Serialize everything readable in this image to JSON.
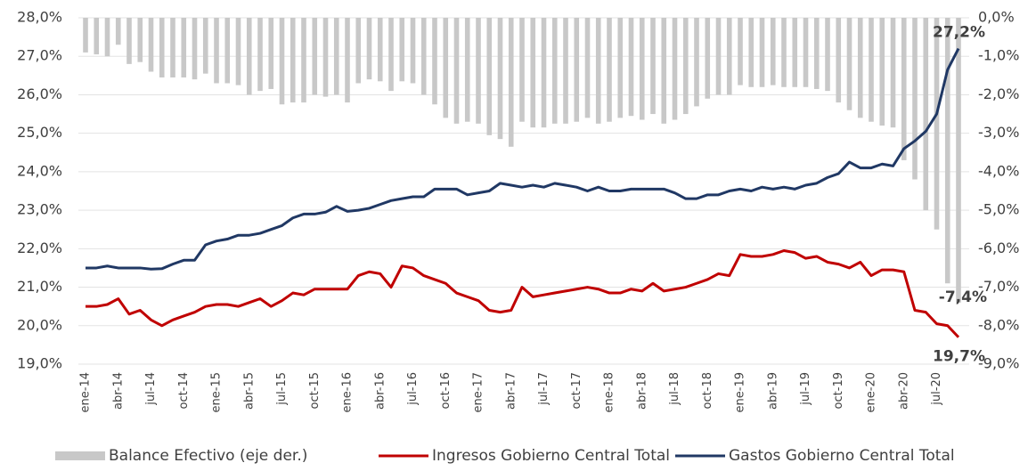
{
  "chart_data": {
    "type": "bar-line",
    "categories": [
      "ene-14",
      null,
      null,
      "abr-14",
      null,
      null,
      "jul-14",
      null,
      null,
      "oct-14",
      null,
      null,
      "ene-15",
      null,
      null,
      "abr-15",
      null,
      null,
      "jul-15",
      null,
      null,
      "oct-15",
      null,
      null,
      "ene-16",
      null,
      null,
      "abr-16",
      null,
      null,
      "jul-16",
      null,
      null,
      "oct-16",
      null,
      null,
      "ene-17",
      null,
      null,
      "abr-17",
      null,
      null,
      "jul-17",
      null,
      null,
      "oct-17",
      null,
      null,
      "ene-18",
      null,
      null,
      "abr-18",
      null,
      null,
      "jul-18",
      null,
      null,
      "oct-18",
      null,
      null,
      "ene-19",
      null,
      null,
      "abr-19",
      null,
      null,
      "jul-19",
      null,
      null,
      "oct-19",
      null,
      null,
      "ene-20",
      null,
      null,
      "abr-20",
      null,
      null,
      "jul-20",
      null,
      null
    ],
    "series": [
      {
        "name": "Balance Efectivo (eje der.)",
        "kind": "bar",
        "axis": "y2",
        "color": "#c8c8c8",
        "values": [
          -0.9,
          -0.95,
          -1.0,
          -0.7,
          -1.2,
          -1.15,
          -1.4,
          -1.55,
          -1.55,
          -1.55,
          -1.6,
          -1.45,
          -1.7,
          -1.7,
          -1.75,
          -2.0,
          -1.9,
          -1.85,
          -2.25,
          -2.2,
          -2.2,
          -2.0,
          -2.05,
          -2.0,
          -2.2,
          -1.7,
          -1.6,
          -1.65,
          -1.9,
          -1.65,
          -1.7,
          -2.0,
          -2.25,
          -2.6,
          -2.75,
          -2.7,
          -2.75,
          -3.05,
          -3.15,
          -3.35,
          -2.7,
          -2.85,
          -2.85,
          -2.75,
          -2.75,
          -2.7,
          -2.6,
          -2.75,
          -2.7,
          -2.6,
          -2.55,
          -2.65,
          -2.5,
          -2.75,
          -2.65,
          -2.5,
          -2.3,
          -2.1,
          -2.0,
          -2.0,
          -1.75,
          -1.8,
          -1.8,
          -1.75,
          -1.8,
          -1.8,
          -1.8,
          -1.85,
          -1.9,
          -2.2,
          -2.4,
          -2.6,
          -2.7,
          -2.8,
          -2.85,
          -3.7,
          -4.2,
          -5.0,
          -5.5,
          -6.9,
          -7.4
        ],
        "value_labels": [
          null,
          null,
          null,
          null,
          null,
          null,
          null,
          null,
          null,
          null,
          null,
          null,
          null,
          null,
          null,
          null,
          null,
          null,
          null,
          null,
          null,
          null,
          null,
          null,
          null,
          null,
          null,
          null,
          null,
          null,
          null,
          null,
          null,
          null,
          null,
          null,
          null,
          null,
          null,
          null,
          null,
          null,
          null,
          null,
          null,
          null,
          null,
          null,
          null,
          null,
          null,
          null,
          null,
          null,
          null,
          null,
          null,
          null,
          null,
          null,
          null,
          null,
          null,
          null,
          null,
          null,
          null,
          null,
          null,
          null,
          null,
          null,
          null,
          null,
          null,
          null,
          null,
          null,
          null,
          null,
          "-7,4%"
        ]
      },
      {
        "name": "Ingresos Gobierno Central Total",
        "kind": "line",
        "color": "#c00000",
        "values": [
          20.5,
          20.5,
          20.55,
          20.7,
          20.3,
          20.4,
          20.15,
          20.0,
          20.15,
          20.25,
          20.35,
          20.5,
          20.55,
          20.55,
          20.5,
          20.6,
          20.7,
          20.5,
          20.65,
          20.85,
          20.8,
          20.95,
          20.95,
          20.95,
          20.95,
          21.3,
          21.4,
          21.35,
          21.0,
          21.55,
          21.5,
          21.3,
          21.2,
          21.1,
          20.85,
          20.75,
          20.65,
          20.4,
          20.35,
          20.4,
          21.0,
          20.75,
          20.8,
          20.85,
          20.9,
          20.95,
          21.0,
          20.95,
          20.85,
          20.85,
          20.95,
          20.9,
          21.1,
          20.9,
          20.95,
          21.0,
          21.1,
          21.2,
          21.35,
          21.3,
          21.85,
          21.8,
          21.8,
          21.85,
          21.95,
          21.9,
          21.75,
          21.8,
          21.65,
          21.6,
          21.5,
          21.65,
          21.3,
          21.45,
          21.45,
          21.4,
          20.4,
          20.35,
          20.05,
          20.0,
          19.7
        ],
        "value_labels": [
          null,
          null,
          null,
          null,
          null,
          null,
          null,
          null,
          null,
          null,
          null,
          null,
          null,
          null,
          null,
          null,
          null,
          null,
          null,
          null,
          null,
          null,
          null,
          null,
          null,
          null,
          null,
          null,
          null,
          null,
          null,
          null,
          null,
          null,
          null,
          null,
          null,
          null,
          null,
          null,
          null,
          null,
          null,
          null,
          null,
          null,
          null,
          null,
          null,
          null,
          null,
          null,
          null,
          null,
          null,
          null,
          null,
          null,
          null,
          null,
          null,
          null,
          null,
          null,
          null,
          null,
          null,
          null,
          null,
          null,
          null,
          null,
          null,
          null,
          null,
          null,
          null,
          null,
          null,
          null,
          "19,7%"
        ]
      },
      {
        "name": "Gastos Gobierno Central Total",
        "kind": "line",
        "color": "#203864",
        "values": [
          21.5,
          21.5,
          21.55,
          21.5,
          21.5,
          21.5,
          21.47,
          21.48,
          21.6,
          21.7,
          21.7,
          22.1,
          22.2,
          22.25,
          22.35,
          22.35,
          22.4,
          22.5,
          22.6,
          22.8,
          22.9,
          22.9,
          22.95,
          23.1,
          22.97,
          23.0,
          23.05,
          23.15,
          23.25,
          23.3,
          23.35,
          23.35,
          23.55,
          23.55,
          23.55,
          23.4,
          23.45,
          23.5,
          23.7,
          23.65,
          23.6,
          23.65,
          23.6,
          23.7,
          23.65,
          23.6,
          23.5,
          23.6,
          23.5,
          23.5,
          23.55,
          23.55,
          23.55,
          23.55,
          23.45,
          23.3,
          23.3,
          23.4,
          23.4,
          23.5,
          23.55,
          23.5,
          23.6,
          23.55,
          23.6,
          23.55,
          23.65,
          23.7,
          23.85,
          23.95,
          24.25,
          24.1,
          24.1,
          24.2,
          24.15,
          24.6,
          24.8,
          25.05,
          25.5,
          26.65,
          27.2
        ],
        "value_labels": [
          null,
          null,
          null,
          null,
          null,
          null,
          null,
          null,
          null,
          null,
          null,
          null,
          null,
          null,
          null,
          null,
          null,
          null,
          null,
          null,
          null,
          null,
          null,
          null,
          null,
          null,
          null,
          null,
          null,
          null,
          null,
          null,
          null,
          null,
          null,
          null,
          null,
          null,
          null,
          null,
          null,
          null,
          null,
          null,
          null,
          null,
          null,
          null,
          null,
          null,
          null,
          null,
          null,
          null,
          null,
          null,
          null,
          null,
          null,
          null,
          null,
          null,
          null,
          null,
          null,
          null,
          null,
          null,
          null,
          null,
          null,
          null,
          null,
          null,
          null,
          null,
          null,
          null,
          null,
          null,
          "27,2%"
        ]
      }
    ],
    "ylim": [
      19,
      28
    ],
    "yticks": [
      {
        "value": 19,
        "label": "19,0%"
      },
      {
        "value": 20,
        "label": "20,0%"
      },
      {
        "value": 21,
        "label": "21,0%"
      },
      {
        "value": 22,
        "label": "22,0%"
      },
      {
        "value": 23,
        "label": "23,0%"
      },
      {
        "value": 24,
        "label": "24,0%"
      },
      {
        "value": 25,
        "label": "25,0%"
      },
      {
        "value": 26,
        "label": "26,0%"
      },
      {
        "value": 27,
        "label": "27,0%"
      },
      {
        "value": 28,
        "label": "28,0%"
      }
    ],
    "y2lim": [
      -9,
      0
    ],
    "y2ticks": [
      {
        "value": -9,
        "label": "-9,0%"
      },
      {
        "value": -8,
        "label": "-8,0%"
      },
      {
        "value": -7,
        "label": "-7,0%"
      },
      {
        "value": -6,
        "label": "-6,0%"
      },
      {
        "value": -5,
        "label": "-5,0%"
      },
      {
        "value": -4,
        "label": "-4,0%"
      },
      {
        "value": -3,
        "label": "-3,0%"
      },
      {
        "value": -2,
        "label": "-2,0%"
      },
      {
        "value": -1,
        "label": "-1,0%"
      },
      {
        "value": 0,
        "label": "0,0%"
      }
    ],
    "grid": true,
    "legend": "bottom"
  }
}
